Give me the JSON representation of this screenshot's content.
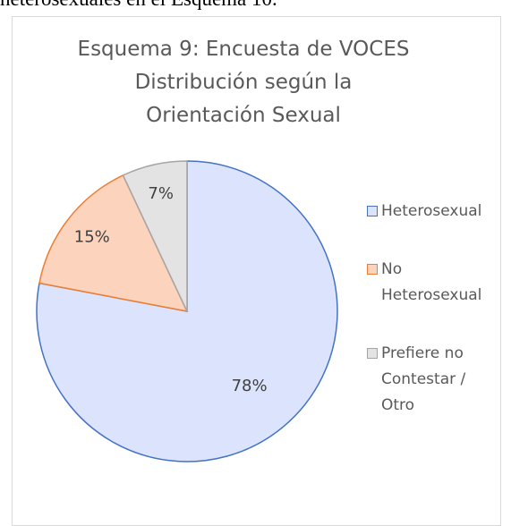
{
  "text_above": "heterosexuales en el Esquema 10.",
  "chart_data": {
    "type": "pie",
    "title": [
      "Esquema 9: Encuesta de VOCES",
      "Distribución según la",
      "Orientación Sexual"
    ],
    "categories": [
      "Heterosexual",
      "No Heterosexual",
      "Prefiere no Contestar / Otro"
    ],
    "values": [
      78,
      15,
      7
    ],
    "value_labels": [
      "78%",
      "15%",
      "7%"
    ],
    "colors": [
      "#dbe4fc",
      "#fcd3bd",
      "#e3e3e3"
    ],
    "border_colors": [
      "#4472c4",
      "#ed7d31",
      "#a5a5a5"
    ],
    "legend": "right"
  }
}
